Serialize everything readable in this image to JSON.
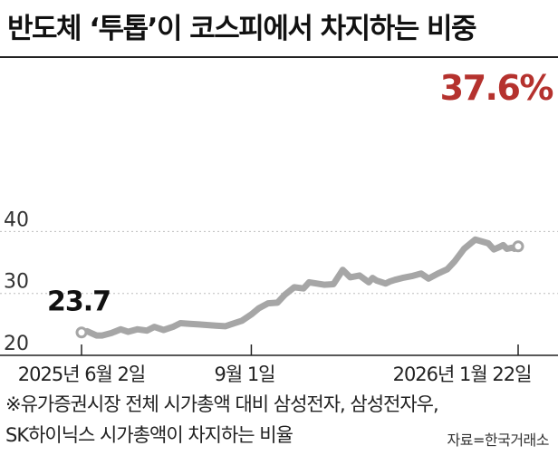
{
  "title": "반도체 ‘투톱’이 코스피에서 차지하는 비중",
  "chart_data": {
    "type": "line",
    "title": "반도체 ‘투톱’이 코스피에서 차지하는 비중",
    "xlabel": "",
    "ylabel": "",
    "ylim": [
      20,
      40
    ],
    "yticks": [
      20,
      30,
      40
    ],
    "xtick_labels": [
      "2025년 6월 2일",
      "9월 1일",
      "2026년 1월 22일"
    ],
    "annotations": {
      "start": "23.7",
      "end": "37.6%"
    },
    "grid": true,
    "legend": "none",
    "colors": {
      "line": "#a6a6a6",
      "grid": "#bdbdbd",
      "highlight": "#b5322e"
    },
    "series": [
      {
        "x": [
          "2025-06-02",
          "2025-06-05",
          "2025-06-10",
          "2025-06-13",
          "2025-06-18",
          "2025-06-23",
          "2025-06-27",
          "2025-07-02",
          "2025-07-07",
          "2025-07-11",
          "2025-07-16",
          "2025-07-21",
          "2025-07-25",
          "2025-07-30",
          "2025-08-04",
          "2025-08-08",
          "2025-08-13",
          "2025-08-18",
          "2025-08-22",
          "2025-08-27",
          "2025-09-01",
          "2025-09-05",
          "2025-09-10",
          "2025-09-15",
          "2025-09-19",
          "2025-09-24",
          "2025-09-29",
          "2025-10-02",
          "2025-10-10",
          "2025-10-15",
          "2025-10-20",
          "2025-10-24",
          "2025-10-29",
          "2025-11-03",
          "2025-11-05",
          "2025-11-07",
          "2025-11-10",
          "2025-11-12",
          "2025-11-14",
          "2025-11-17",
          "2025-11-21",
          "2025-11-26",
          "2025-12-01",
          "2025-12-05",
          "2025-12-10",
          "2025-12-15",
          "2025-12-19",
          "2025-12-24",
          "2025-12-30",
          "2026-01-06",
          "2026-01-09",
          "2026-01-12",
          "2026-01-14",
          "2026-01-16",
          "2026-01-19",
          "2026-01-20",
          "2026-01-21",
          "2026-01-22"
        ],
        "values": [
          23.7,
          23.9,
          23.2,
          23.2,
          23.6,
          24.2,
          23.8,
          24.2,
          24.0,
          24.6,
          24.1,
          24.6,
          25.2,
          25.1,
          25.0,
          24.9,
          24.8,
          24.7,
          25.1,
          25.6,
          26.6,
          27.6,
          28.4,
          28.5,
          29.8,
          31.0,
          30.8,
          31.8,
          31.4,
          31.5,
          33.8,
          32.6,
          32.9,
          31.8,
          32.5,
          32.1,
          31.8,
          31.6,
          31.9,
          32.2,
          32.5,
          32.8,
          33.2,
          32.4,
          33.2,
          33.9,
          35.2,
          37.2,
          38.7,
          38.1,
          37.1,
          37.5,
          37.8,
          37.2,
          37.4,
          37.2,
          37.4,
          37.6
        ]
      }
    ]
  },
  "notes": {
    "line1": "※유가증권시장 전체 시가총액 대비 삼성전자, 삼성전자우,",
    "line2": "SK하이닉스 시가총액이 차지하는 비율",
    "source": "자료=한국거래소"
  }
}
